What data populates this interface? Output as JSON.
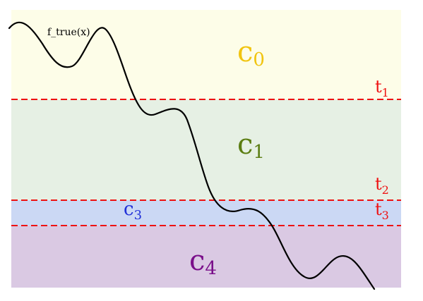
{
  "curve": {
    "label": "f_true(x)",
    "color": "#000000"
  },
  "bands": [
    {
      "id": "c0",
      "base": "c",
      "sub": "0",
      "fill": "#fdfde8",
      "label_color": "#f1c40f"
    },
    {
      "id": "c1",
      "base": "c",
      "sub": "1",
      "fill": "#e6f0e4",
      "label_color": "#5b7d12"
    },
    {
      "id": "c3",
      "base": "c",
      "sub": "3",
      "fill": "#cbd8f4",
      "label_color": "#2130d8"
    },
    {
      "id": "c4",
      "base": "c",
      "sub": "4",
      "fill": "#dac9e3",
      "label_color": "#7a0f8a"
    }
  ],
  "thresholds": [
    {
      "id": "t1",
      "base": "t",
      "sub": "1",
      "color": "#ee1111"
    },
    {
      "id": "t2",
      "base": "t",
      "sub": "2",
      "color": "#ee1111"
    },
    {
      "id": "t3",
      "base": "t",
      "sub": "3",
      "color": "#ee1111"
    }
  ]
}
